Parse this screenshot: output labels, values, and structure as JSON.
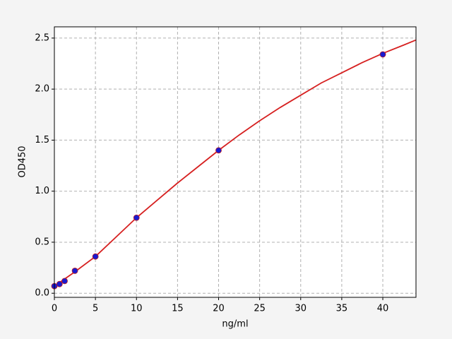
{
  "chart_data": {
    "type": "scatter",
    "xlabel": "ng/ml",
    "ylabel": "OD450",
    "xlim": [
      0,
      44.04
    ],
    "ylim": [
      -0.04,
      2.61
    ],
    "xticks": [
      0,
      5,
      10,
      15,
      20,
      25,
      30,
      35,
      40
    ],
    "yticks": [
      {
        "value": 0,
        "label": "0.0"
      },
      0.5,
      {
        "value": 1,
        "label": "1.0"
      },
      1.5,
      {
        "value": 2,
        "label": "2.0"
      },
      2.5
    ],
    "grid": true,
    "series": [
      {
        "type": "line",
        "color": "#d62020",
        "x": [
          0,
          2.5,
          5,
          7.5,
          10,
          12.5,
          15,
          17.5,
          20,
          22.5,
          25,
          27.5,
          30,
          32.5,
          35,
          37.5,
          40,
          42.5,
          44
        ],
        "values": [
          0.07,
          0.21,
          0.36,
          0.55,
          0.74,
          0.91,
          1.08,
          1.24,
          1.4,
          1.55,
          1.69,
          1.82,
          1.94,
          2.06,
          2.16,
          2.26,
          2.35,
          2.43,
          2.48
        ]
      },
      {
        "type": "scatter",
        "color": "#1a1ad0",
        "x": [
          0,
          0.625,
          1.25,
          2.5,
          5,
          10,
          20,
          40
        ],
        "values": [
          0.07,
          0.09,
          0.12,
          0.22,
          0.36,
          0.74,
          1.4,
          2.34
        ]
      }
    ]
  }
}
